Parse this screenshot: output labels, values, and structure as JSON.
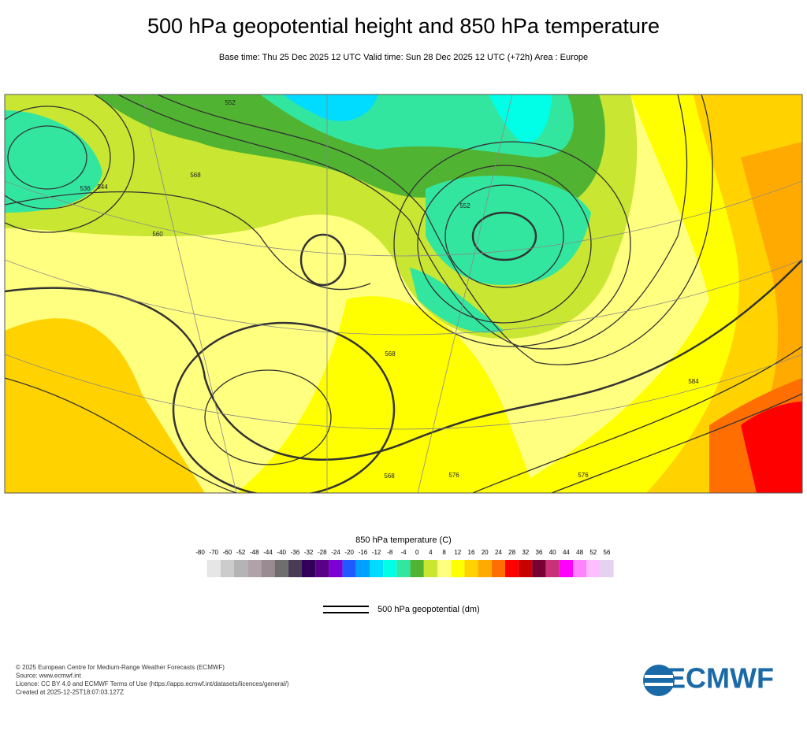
{
  "header": {
    "title": "500 hPa geopotential height and 850 hPa temperature",
    "subtitle": "Base time: Thu 25 Dec 2025 12 UTC Valid time: Sun 28 Dec 2025 12 UTC (+72h) Area : Europe"
  },
  "map": {
    "contour_labels": [
      "568",
      "552",
      "544",
      "536",
      "576",
      "560",
      "568",
      "576",
      "584",
      "552",
      "568"
    ]
  },
  "legend": {
    "title": "850 hPa temperature (C)",
    "ticks": [
      -80,
      -70,
      -60,
      -52,
      -48,
      -44,
      -40,
      -36,
      -32,
      -28,
      -24,
      -20,
      -16,
      -12,
      -8,
      -4,
      0,
      4,
      8,
      12,
      16,
      20,
      24,
      28,
      32,
      36,
      40,
      44,
      48,
      52,
      56
    ],
    "colors": [
      "#e6e6e6",
      "#cccccc",
      "#b4b4b4",
      "#b0a2a8",
      "#9a8a92",
      "#6e6e6e",
      "#4b3c55",
      "#32005a",
      "#5a0087",
      "#7d00d2",
      "#1e5aff",
      "#00a0ff",
      "#00dcff",
      "#00ffe6",
      "#32e6a0",
      "#50b432",
      "#c8e632",
      "#ffff80",
      "#ffff00",
      "#ffd200",
      "#ffaa00",
      "#ff6e00",
      "#ff0000",
      "#c80000",
      "#780032",
      "#c83278",
      "#ff00ff",
      "#ff82ff",
      "#ffbeff",
      "#e6d2f0"
    ],
    "line_label": "500 hPa geopotential (dm)"
  },
  "footer": {
    "lines": [
      "© 2025 European Centre for Medium-Range Weather Forecasts (ECMWF)",
      "Source: www.ecmwf.int",
      "Licence: CC BY 4.0 and ECMWF Terms of Use (https://apps.ecmwf.int/datasets/licences/general/)",
      "Created at 2025-12-25T18:07:03.127Z"
    ],
    "logo": "ECMWF"
  }
}
